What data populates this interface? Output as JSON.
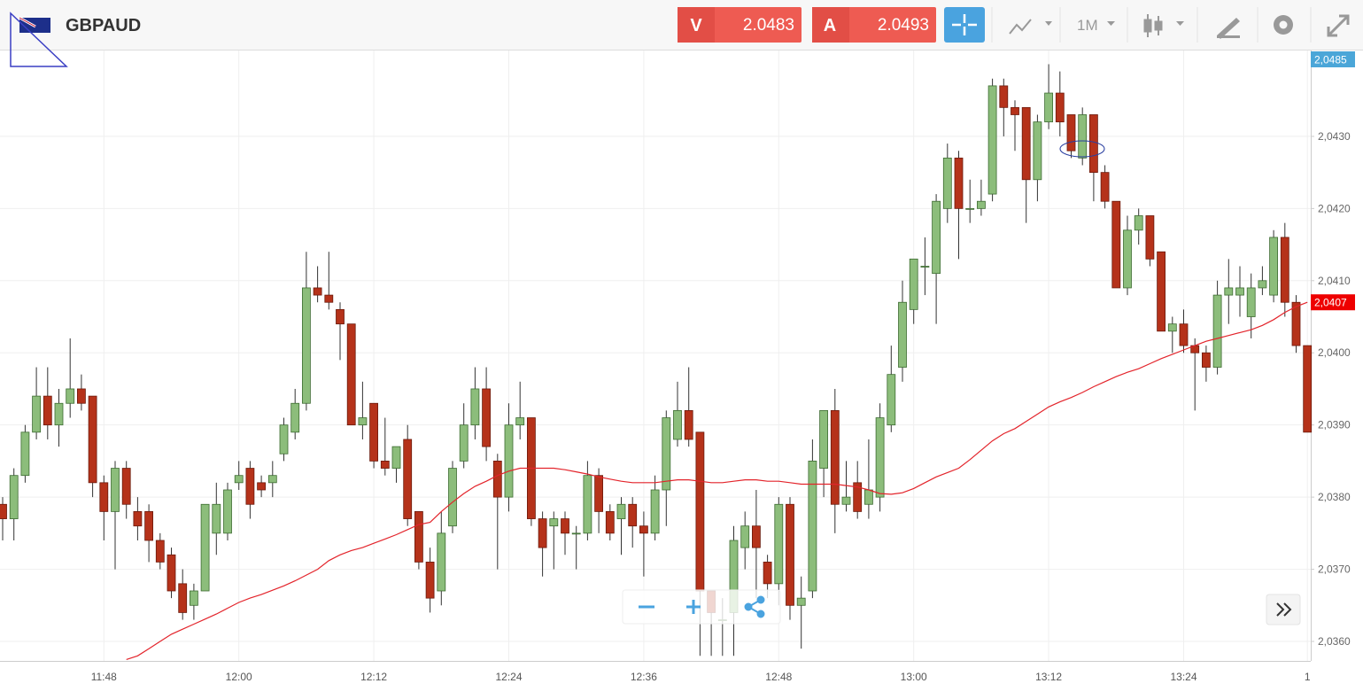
{
  "header": {
    "symbol": "GBPAUD",
    "sell": {
      "letter": "V",
      "price": "2.0483"
    },
    "buy": {
      "letter": "A",
      "price": "2.0493"
    },
    "timeframe": "1M"
  },
  "chart_data": {
    "type": "candlestick",
    "categories": [
      null,
      null,
      null,
      null,
      null,
      null,
      null,
      null,
      null,
      "11:48",
      null,
      null,
      null,
      null,
      null,
      null,
      null,
      null,
      null,
      null,
      null,
      "12:00",
      null,
      null,
      null,
      null,
      null,
      null,
      null,
      null,
      null,
      null,
      null,
      "12:12",
      null,
      null,
      null,
      null,
      null,
      null,
      null,
      null,
      null,
      null,
      null,
      "12:24",
      null,
      null,
      null,
      null,
      null,
      null,
      null,
      null,
      null,
      null,
      null,
      "12:36",
      null,
      null,
      null,
      null,
      null,
      null,
      null,
      null,
      null,
      null,
      null,
      "12:48",
      null,
      null,
      null,
      null,
      null,
      null,
      null,
      null,
      null,
      null,
      null,
      "13:00",
      null,
      null,
      null,
      null,
      null,
      null,
      null,
      null,
      null,
      null,
      null,
      "13:12",
      null,
      null,
      null,
      null,
      null,
      null,
      null,
      null,
      null,
      null,
      null,
      "13:24",
      null,
      null,
      null,
      null,
      null,
      null,
      null,
      null,
      null,
      null,
      "1"
    ],
    "open": [
      2.0379,
      2.0377,
      2.0383,
      2.0389,
      2.0394,
      2.039,
      2.0393,
      2.0395,
      2.0394,
      2.0382,
      2.0378,
      2.0384,
      2.0378,
      2.0378,
      2.0374,
      2.0372,
      2.0368,
      2.0365,
      2.0367,
      2.0375,
      2.0375,
      2.0382,
      2.0384,
      2.0382,
      2.0382,
      2.0386,
      2.0389,
      2.0393,
      2.0409,
      2.0408,
      2.0406,
      2.0404,
      2.039,
      2.0393,
      2.0385,
      2.0384,
      2.0388,
      2.0378,
      2.0371,
      2.0367,
      2.0376,
      2.0385,
      2.039,
      2.0395,
      2.0385,
      2.038,
      2.039,
      2.0391,
      2.0377,
      2.0376,
      2.0377,
      2.0375,
      2.0375,
      2.0383,
      2.0378,
      2.0377,
      2.0379,
      2.0376,
      2.0375,
      2.0381,
      2.0388,
      2.0392,
      2.0389,
      2.0367,
      2.0363,
      2.0364,
      2.0373,
      2.0376,
      2.0371,
      2.0368,
      2.0379,
      2.0365,
      2.0367,
      2.0384,
      2.0392,
      2.0379,
      2.0382,
      2.0379,
      2.038,
      2.039,
      2.0398,
      2.0406,
      2.0412,
      2.0411,
      2.042,
      2.0427,
      2.042,
      2.042,
      2.0422,
      2.0437,
      2.0434,
      2.0434,
      2.0424,
      2.0432,
      2.0436,
      2.0433,
      2.0427,
      2.0433,
      2.0425,
      2.0421,
      2.0409,
      2.0417,
      2.0419,
      2.0414,
      2.0403,
      2.0404,
      2.0401,
      2.04,
      2.0398,
      2.0408,
      2.0408,
      2.0405,
      2.0409,
      2.0408,
      2.0416,
      2.0407,
      2.0401
    ],
    "high": [
      2.038,
      2.0384,
      2.039,
      2.0398,
      2.0398,
      2.0395,
      2.0402,
      2.0397,
      2.0394,
      2.0383,
      2.0385,
      2.0385,
      2.038,
      2.0379,
      2.0375,
      2.0373,
      2.037,
      2.0368,
      2.0379,
      2.0382,
      2.0382,
      2.0385,
      2.0385,
      2.0383,
      2.0385,
      2.0391,
      2.0395,
      2.0414,
      2.0412,
      2.0414,
      2.0407,
      2.0404,
      2.0396,
      2.0393,
      2.0391,
      2.0387,
      2.039,
      2.0378,
      2.0373,
      2.0378,
      2.0385,
      2.0393,
      2.0398,
      2.0398,
      2.0386,
      2.0393,
      2.0396,
      2.0391,
      2.0378,
      2.0378,
      2.0378,
      2.0376,
      2.0385,
      2.0384,
      2.0379,
      2.038,
      2.038,
      2.0378,
      2.0383,
      2.0392,
      2.0396,
      2.0398,
      2.0389,
      2.0367,
      2.0366,
      2.0376,
      2.0378,
      2.0381,
      2.0372,
      2.038,
      2.038,
      2.0369,
      2.0388,
      2.0392,
      2.0395,
      2.0385,
      2.0385,
      2.0388,
      2.0393,
      2.0401,
      2.041,
      2.0413,
      2.0416,
      2.0422,
      2.0429,
      2.0428,
      2.0424,
      2.0424,
      2.0438,
      2.0438,
      2.0435,
      2.0434,
      2.0433,
      2.044,
      2.0439,
      2.0433,
      2.0434,
      2.0433,
      2.0426,
      2.0421,
      2.0419,
      2.042,
      2.0419,
      2.0414,
      2.0405,
      2.0406,
      2.0402,
      2.0401,
      2.041,
      2.0413,
      2.0412,
      2.0411,
      2.0412,
      2.0417,
      2.0418,
      2.0408,
      2.0401
    ],
    "low": [
      2.0374,
      2.0374,
      2.0382,
      2.0388,
      2.0388,
      2.0387,
      2.0391,
      2.0392,
      2.038,
      2.0374,
      2.037,
      2.0377,
      2.0374,
      2.0371,
      2.037,
      2.0366,
      2.0363,
      2.0363,
      2.0367,
      2.0372,
      2.0374,
      2.0381,
      2.0377,
      2.038,
      2.038,
      2.0385,
      2.0388,
      2.0392,
      2.0407,
      2.0406,
      2.0399,
      2.039,
      2.0388,
      2.0384,
      2.0383,
      2.0382,
      2.0376,
      2.037,
      2.0364,
      2.0365,
      2.0375,
      2.0384,
      2.0388,
      2.0385,
      2.037,
      2.0378,
      2.0388,
      2.0376,
      2.0369,
      2.037,
      2.0372,
      2.037,
      2.0374,
      2.0375,
      2.0374,
      2.0372,
      2.0373,
      2.0369,
      2.0374,
      2.0376,
      2.0387,
      2.0387,
      2.0358,
      2.0358,
      2.0358,
      2.0358,
      2.037,
      2.0366,
      2.0366,
      2.0365,
      2.0363,
      2.0359,
      2.0366,
      2.038,
      2.0375,
      2.0378,
      2.0377,
      2.0377,
      2.0378,
      2.0389,
      2.0396,
      2.0404,
      2.0408,
      2.0404,
      2.0418,
      2.0413,
      2.0418,
      2.0419,
      2.0421,
      2.043,
      2.0428,
      2.0418,
      2.0421,
      2.0431,
      2.043,
      2.0427,
      2.0426,
      2.0421,
      2.042,
      2.0409,
      2.0408,
      2.0415,
      2.0412,
      2.0403,
      2.04,
      2.04,
      2.0392,
      2.0396,
      2.0397,
      2.0404,
      2.0405,
      2.0402,
      2.0408,
      2.0407,
      2.0405,
      2.04,
      2.0389
    ],
    "close": [
      2.0377,
      2.0383,
      2.0389,
      2.0394,
      2.039,
      2.0393,
      2.0395,
      2.0393,
      2.0382,
      2.0378,
      2.0384,
      2.0379,
      2.0376,
      2.0374,
      2.0371,
      2.0367,
      2.0364,
      2.0367,
      2.0379,
      2.0379,
      2.0381,
      2.0383,
      2.0379,
      2.0381,
      2.0383,
      2.039,
      2.0393,
      2.0409,
      2.0408,
      2.0407,
      2.0404,
      2.039,
      2.0391,
      2.0385,
      2.0384,
      2.0387,
      2.0377,
      2.0371,
      2.0366,
      2.0375,
      2.0384,
      2.039,
      2.0395,
      2.0387,
      2.038,
      2.039,
      2.0391,
      2.0377,
      2.0373,
      2.0377,
      2.0375,
      2.0375,
      2.0383,
      2.0378,
      2.0375,
      2.0379,
      2.0376,
      2.0375,
      2.0381,
      2.0391,
      2.0392,
      2.0388,
      2.0367,
      2.0364,
      2.0363,
      2.0374,
      2.0376,
      2.0373,
      2.0368,
      2.0379,
      2.0365,
      2.0366,
      2.0385,
      2.0392,
      2.0379,
      2.038,
      2.0378,
      2.0381,
      2.0391,
      2.0397,
      2.0407,
      2.0413,
      2.0412,
      2.0421,
      2.0427,
      2.042,
      2.042,
      2.0421,
      2.0437,
      2.0434,
      2.0433,
      2.0424,
      2.0432,
      2.0436,
      2.0432,
      2.0428,
      2.0433,
      2.0425,
      2.0421,
      2.0409,
      2.0417,
      2.0419,
      2.0413,
      2.0403,
      2.0404,
      2.0401,
      2.04,
      2.0398,
      2.0408,
      2.0409,
      2.0409,
      2.0409,
      2.041,
      2.0416,
      2.0407,
      2.0401,
      2.0389
    ],
    "ma": [
      null,
      null,
      null,
      null,
      null,
      null,
      null,
      null,
      null,
      null,
      null,
      2.03575,
      2.0358,
      2.0359,
      2.036,
      2.0361,
      2.03617,
      2.03624,
      2.03631,
      2.03638,
      2.03646,
      2.03654,
      2.0366,
      2.03665,
      2.03671,
      2.03677,
      2.03684,
      2.03692,
      2.037,
      2.03712,
      2.0372,
      2.03726,
      2.0373,
      2.03736,
      2.03742,
      2.03748,
      2.03755,
      2.03762,
      2.03765,
      2.0378,
      2.03793,
      2.03805,
      2.03815,
      2.03822,
      2.0383,
      2.03836,
      2.0384,
      2.0384,
      2.0384,
      2.0384,
      2.03838,
      2.03835,
      2.03832,
      2.03828,
      2.03825,
      2.03822,
      2.0382,
      2.0382,
      2.0382,
      2.03822,
      2.03824,
      2.03824,
      2.03822,
      2.0382,
      2.0382,
      2.03822,
      2.03824,
      2.03824,
      2.03822,
      2.03822,
      2.0382,
      2.03818,
      2.03818,
      2.03818,
      2.03818,
      2.03816,
      2.03814,
      2.0381,
      2.03805,
      2.03804,
      2.03806,
      2.03812,
      2.0382,
      2.03828,
      2.03834,
      2.0384,
      2.03852,
      2.03865,
      2.03878,
      2.03888,
      2.03895,
      2.03905,
      2.03915,
      2.03925,
      2.03932,
      2.03938,
      2.03945,
      2.03953,
      2.0396,
      2.03967,
      2.03973,
      2.03978,
      2.03985,
      2.03992,
      2.03998,
      2.04004,
      2.0401,
      2.04016,
      2.0402,
      2.04024,
      2.04028,
      2.04032,
      2.04038,
      2.04046,
      2.04056,
      2.04064,
      2.0407
    ],
    "up_color": "#8cbd7b",
    "down_color": "#b5321a",
    "ma_color": "#e3242b",
    "ylim": [
      2.03573,
      2.04419
    ],
    "yticks": [
      {
        "value": 2.036,
        "label": "2,0360"
      },
      {
        "value": 2.037,
        "label": "2,0370"
      },
      {
        "value": 2.038,
        "label": "2,0380"
      },
      {
        "value": 2.039,
        "label": "2,0390"
      },
      {
        "value": 2.04,
        "label": "2,0400"
      },
      {
        "value": 2.041,
        "label": "2,0410"
      },
      {
        "value": 2.042,
        "label": "2,0420"
      },
      {
        "value": 2.043,
        "label": "2,0430"
      }
    ],
    "price_tags": [
      {
        "label": "2,0485",
        "color": "#4ba6d8"
      },
      {
        "value": 2.0407,
        "label": "2,0407",
        "color": "#ee0000"
      }
    ],
    "grid": true
  }
}
